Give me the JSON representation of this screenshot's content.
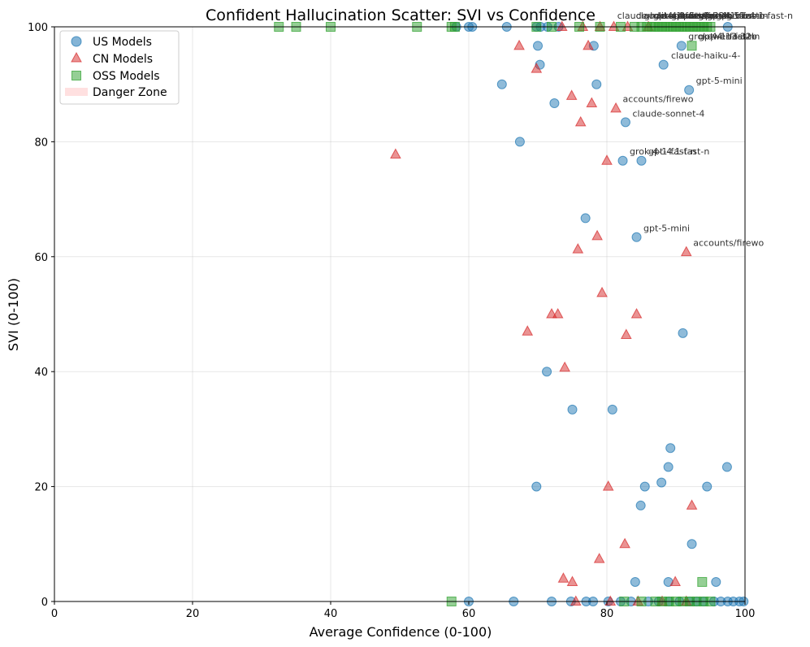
{
  "chart_data": {
    "type": "scatter",
    "title": "Confident Hallucination Scatter: SVI vs Confidence",
    "xlabel": "Average Confidence (0-100)",
    "ylabel": "SVI (0-100)",
    "xlim": [
      0,
      100
    ],
    "ylim": [
      0,
      100
    ],
    "xticks": [
      0,
      20,
      40,
      60,
      80,
      100
    ],
    "yticks": [
      0,
      20,
      40,
      60,
      80,
      100
    ],
    "grid": true,
    "legend": {
      "placement": "top-left",
      "entries": [
        {
          "label": "US Models",
          "marker": "circle",
          "color": "#1f77b4"
        },
        {
          "label": "CN Models",
          "marker": "triangle",
          "color": "#d62728"
        },
        {
          "label": "OSS Models",
          "marker": "square",
          "color": "#2ca02c"
        },
        {
          "label": "Danger Zone",
          "marker": "patch",
          "color": "#ffcccc"
        }
      ]
    },
    "series": [
      {
        "name": "US Models",
        "marker": "circle",
        "color": "#1f77b4",
        "points": [
          [
            58.2,
            100
          ],
          [
            60,
            100
          ],
          [
            60.5,
            100
          ],
          [
            65.5,
            100
          ],
          [
            69.8,
            100
          ],
          [
            70.4,
            100
          ],
          [
            71.4,
            100
          ],
          [
            73,
            100
          ],
          [
            97.5,
            100
          ],
          [
            90.8,
            96.7
          ],
          [
            70,
            96.7
          ],
          [
            78.1,
            96.7
          ],
          [
            70.3,
            93.4
          ],
          [
            88.2,
            93.4
          ],
          [
            64.8,
            90
          ],
          [
            78.5,
            90
          ],
          [
            91.9,
            89
          ],
          [
            72.4,
            86.7
          ],
          [
            82.7,
            83.4
          ],
          [
            67.4,
            80
          ],
          [
            82.3,
            76.7
          ],
          [
            85,
            76.7
          ],
          [
            76.9,
            66.7
          ],
          [
            84.3,
            63.4
          ],
          [
            91,
            46.7
          ],
          [
            71.3,
            40
          ],
          [
            75,
            33.4
          ],
          [
            80.8,
            33.4
          ],
          [
            89.2,
            26.7
          ],
          [
            88.9,
            23.4
          ],
          [
            97.4,
            23.4
          ],
          [
            69.8,
            20
          ],
          [
            85.5,
            20
          ],
          [
            94.5,
            20
          ],
          [
            87.9,
            20.7
          ],
          [
            84.9,
            16.7
          ],
          [
            92.3,
            10
          ],
          [
            84.1,
            3.4
          ],
          [
            88.9,
            3.4
          ],
          [
            95.8,
            3.4
          ],
          [
            60,
            0
          ],
          [
            66.5,
            0
          ],
          [
            72,
            0
          ],
          [
            74.8,
            0
          ],
          [
            77,
            0
          ],
          [
            78,
            0
          ],
          [
            80.2,
            0
          ],
          [
            82,
            0
          ],
          [
            83.5,
            0
          ],
          [
            86,
            0
          ],
          [
            87.5,
            0
          ],
          [
            89,
            0
          ],
          [
            90.5,
            0
          ],
          [
            92,
            0
          ],
          [
            93,
            0
          ],
          [
            94,
            0
          ],
          [
            95.5,
            0
          ],
          [
            96.5,
            0
          ],
          [
            97.5,
            0
          ],
          [
            98.3,
            0
          ],
          [
            99.2,
            0
          ],
          [
            99.8,
            0
          ]
        ]
      },
      {
        "name": "CN Models",
        "marker": "triangle",
        "color": "#d62728",
        "points": [
          [
            73.5,
            100
          ],
          [
            76.5,
            100
          ],
          [
            79,
            100
          ],
          [
            81,
            100
          ],
          [
            83,
            100
          ],
          [
            86,
            100
          ],
          [
            67.3,
            96.7
          ],
          [
            77.3,
            96.7
          ],
          [
            69.8,
            92.7
          ],
          [
            74.9,
            88
          ],
          [
            77.8,
            86.7
          ],
          [
            81.3,
            85.8
          ],
          [
            76.2,
            83.4
          ],
          [
            49.4,
            77.8
          ],
          [
            80,
            76.7
          ],
          [
            78.6,
            63.6
          ],
          [
            75.8,
            61.3
          ],
          [
            91.5,
            60.8
          ],
          [
            79.3,
            53.7
          ],
          [
            72,
            50
          ],
          [
            72.9,
            50
          ],
          [
            84.3,
            50
          ],
          [
            68.5,
            47
          ],
          [
            82.8,
            46.4
          ],
          [
            73.9,
            40.7
          ],
          [
            80.2,
            20
          ],
          [
            92.3,
            16.7
          ],
          [
            82.6,
            10
          ],
          [
            78.9,
            7.4
          ],
          [
            73.7,
            4
          ],
          [
            75,
            3.4
          ],
          [
            89.9,
            3.4
          ],
          [
            75.5,
            0
          ],
          [
            80.5,
            0
          ],
          [
            84.5,
            0
          ],
          [
            88,
            0
          ],
          [
            91.5,
            0
          ]
        ]
      },
      {
        "name": "OSS Models",
        "marker": "square",
        "color": "#2ca02c",
        "points": [
          [
            32.5,
            100
          ],
          [
            35,
            100
          ],
          [
            40,
            100
          ],
          [
            52.5,
            100
          ],
          [
            57.5,
            100
          ],
          [
            58,
            100
          ],
          [
            69.8,
            100
          ],
          [
            72,
            100
          ],
          [
            76,
            100
          ],
          [
            79,
            100
          ],
          [
            82,
            100
          ],
          [
            84,
            100
          ],
          [
            85,
            100
          ],
          [
            85.8,
            100
          ],
          [
            86.5,
            100
          ],
          [
            87,
            100
          ],
          [
            87.5,
            100
          ],
          [
            88,
            100
          ],
          [
            88.5,
            100
          ],
          [
            89,
            100
          ],
          [
            89.5,
            100
          ],
          [
            90,
            100
          ],
          [
            90.5,
            100
          ],
          [
            91,
            100
          ],
          [
            91.5,
            100
          ],
          [
            92,
            100
          ],
          [
            92.5,
            100
          ],
          [
            93,
            100
          ],
          [
            93.5,
            100
          ],
          [
            94,
            100
          ],
          [
            94.5,
            100
          ],
          [
            95,
            100
          ],
          [
            92.3,
            96.7
          ],
          [
            93.8,
            3.4
          ],
          [
            57.5,
            0
          ],
          [
            82.5,
            0
          ],
          [
            85,
            0
          ],
          [
            87,
            0
          ],
          [
            88,
            0
          ],
          [
            89,
            0
          ],
          [
            90,
            0
          ],
          [
            91,
            0
          ],
          [
            92,
            0
          ],
          [
            93,
            0
          ],
          [
            94,
            0
          ],
          [
            95,
            0
          ]
        ]
      }
    ],
    "annotations": [
      {
        "text": "claude-haiku-4-",
        "x": 89.3,
        "y": 94.5
      },
      {
        "text": "gpt-5-mini",
        "x": 92.9,
        "y": 90.1
      },
      {
        "text": "accounts/firewo",
        "x": 82.3,
        "y": 86.9
      },
      {
        "text": "claude-sonnet-4",
        "x": 83.7,
        "y": 84.4
      },
      {
        "text": "grok-4-1-fast-n",
        "x": 83.3,
        "y": 77.8
      },
      {
        "text": "gpt-4.1-fast-n",
        "x": 86,
        "y": 77.8
      },
      {
        "text": "gpt-5-mini",
        "x": 85.3,
        "y": 64.4
      },
      {
        "text": "accounts/firewo",
        "x": 92.5,
        "y": 61.9
      },
      {
        "text": "grok-4-1-fast-n",
        "x": 91.8,
        "y": 97.8
      },
      {
        "text": "gpt-4.1-fast-n",
        "x": 93.3,
        "y": 97.8
      },
      {
        "text": "qwen3-32b",
        "x": 94.5,
        "y": 97.8
      },
      {
        "text": "claude-haiku-4-",
        "x": 81.5,
        "y": 101.4
      },
      {
        "text": "claude-sonnet-4",
        "x": 84.2,
        "y": 101.4
      },
      {
        "text": "grok-4-1-fast-n",
        "x": 85.4,
        "y": 101.4
      },
      {
        "text": "gpt-4.1-fast-n",
        "x": 86.7,
        "y": 101.4
      },
      {
        "text": "accounts/firewo",
        "x": 88,
        "y": 101.4
      },
      {
        "text": "gpt-5-mini",
        "x": 89.3,
        "y": 101.4
      },
      {
        "text": "qwen3-32b",
        "x": 90.6,
        "y": 101.4
      },
      {
        "text": "deepseek-v3",
        "x": 91.8,
        "y": 101.4
      },
      {
        "text": "grok-4-1-fast-n",
        "x": 93.2,
        "y": 101.4
      },
      {
        "text": "gpt-4.1-fast-n",
        "x": 94.5,
        "y": 101.4
      },
      {
        "text": "gpt-5-mini",
        "x": 95.8,
        "y": 101.4
      },
      {
        "text": "grok-4-1-fast-n",
        "x": 97.3,
        "y": 101.4
      }
    ]
  }
}
